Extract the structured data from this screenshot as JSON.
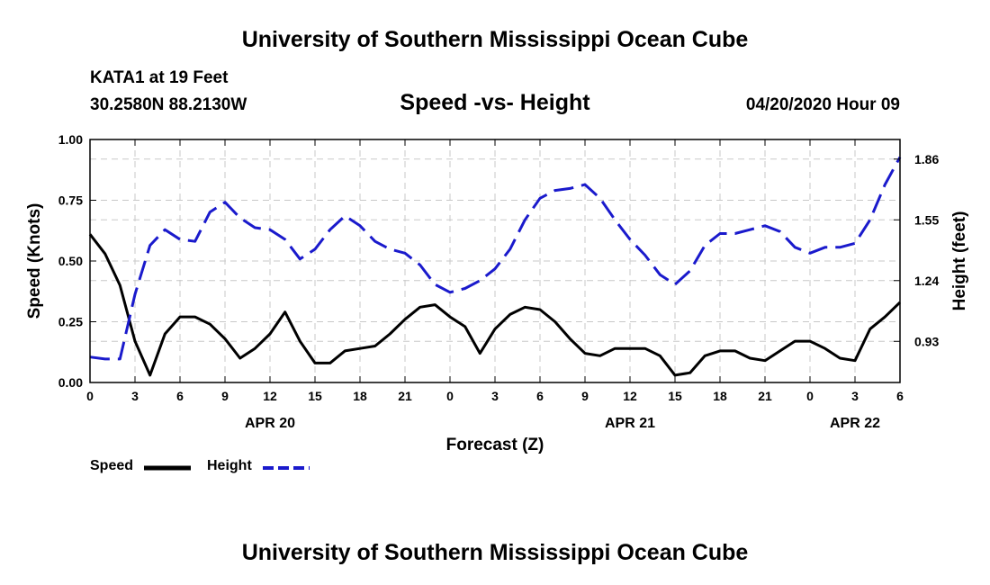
{
  "header": {
    "top_title": "University of Southern Mississippi Ocean Cube",
    "station": "KATA1 at 19 Feet",
    "coords": "30.2580N 88.2130W",
    "chart_title": "Speed -vs- Height",
    "datetime": "04/20/2020 Hour 09"
  },
  "footer": {
    "bottom_title": "University of Southern Mississippi Ocean Cube"
  },
  "legend": {
    "speed_label": "Speed",
    "height_label": "Height"
  },
  "colors": {
    "speed": "#000000",
    "height": "#1a1acc",
    "grid": "#c8c8c8"
  },
  "chart_data": {
    "type": "line",
    "title": "Speed -vs- Height",
    "xlabel": "Forecast (Z)",
    "ylabel": "Speed (Knots)",
    "y2label": "Height (feet)",
    "xlim": [
      0,
      54
    ],
    "ylim": [
      0,
      1.0
    ],
    "y2lim": [
      0.72,
      1.96
    ],
    "xticks": [
      0,
      3,
      6,
      9,
      12,
      15,
      18,
      21,
      24,
      27,
      30,
      33,
      36,
      39,
      42,
      45,
      48,
      51,
      54
    ],
    "xtick_labels": [
      "0",
      "3",
      "6",
      "9",
      "12",
      "15",
      "18",
      "21",
      "0",
      "3",
      "6",
      "9",
      "12",
      "15",
      "18",
      "21",
      "0",
      "3",
      "6"
    ],
    "date_labels": [
      {
        "x": 12,
        "label": "APR 20"
      },
      {
        "x": 36,
        "label": "APR 21"
      },
      {
        "x": 51,
        "label": "APR 22"
      }
    ],
    "yticks": [
      0,
      0.25,
      0.5,
      0.75,
      1.0
    ],
    "ytick_labels": [
      "0.00",
      "0.25",
      "0.50",
      "0.75",
      "1.00"
    ],
    "y2ticks": [
      0.93,
      1.24,
      1.55,
      1.86
    ],
    "y2tick_labels": [
      "0.93",
      "1.24",
      "1.55",
      "1.86"
    ],
    "grid": true,
    "x": [
      0,
      1,
      2,
      3,
      4,
      5,
      6,
      7,
      8,
      9,
      10,
      11,
      12,
      13,
      14,
      15,
      16,
      17,
      18,
      19,
      20,
      21,
      22,
      23,
      24,
      25,
      26,
      27,
      28,
      29,
      30,
      31,
      32,
      33,
      34,
      35,
      36,
      37,
      38,
      39,
      40,
      41,
      42,
      43,
      44,
      45,
      46,
      47,
      48,
      49,
      50,
      51,
      52,
      53,
      54
    ],
    "series": [
      {
        "name": "Speed",
        "axis": "left",
        "style": "solid",
        "values": [
          0.61,
          0.53,
          0.4,
          0.17,
          0.03,
          0.2,
          0.27,
          0.27,
          0.24,
          0.18,
          0.1,
          0.14,
          0.2,
          0.29,
          0.17,
          0.08,
          0.08,
          0.13,
          0.14,
          0.15,
          0.2,
          0.26,
          0.31,
          0.32,
          0.27,
          0.23,
          0.12,
          0.22,
          0.28,
          0.31,
          0.3,
          0.25,
          0.18,
          0.12,
          0.11,
          0.14,
          0.14,
          0.14,
          0.11,
          0.03,
          0.04,
          0.11,
          0.13,
          0.13,
          0.1,
          0.09,
          0.13,
          0.17,
          0.17,
          0.14,
          0.1,
          0.09,
          0.22,
          0.27,
          0.33
        ]
      },
      {
        "name": "Height",
        "axis": "right",
        "style": "dashed",
        "values": [
          0.85,
          0.84,
          0.84,
          1.17,
          1.42,
          1.5,
          1.45,
          1.44,
          1.59,
          1.64,
          1.56,
          1.51,
          1.5,
          1.45,
          1.35,
          1.4,
          1.5,
          1.57,
          1.52,
          1.44,
          1.4,
          1.38,
          1.32,
          1.22,
          1.18,
          1.2,
          1.24,
          1.3,
          1.4,
          1.55,
          1.66,
          1.7,
          1.71,
          1.73,
          1.66,
          1.55,
          1.45,
          1.37,
          1.27,
          1.22,
          1.29,
          1.42,
          1.48,
          1.48,
          1.5,
          1.52,
          1.49,
          1.41,
          1.38,
          1.41,
          1.41,
          1.43,
          1.55,
          1.73,
          1.87
        ]
      }
    ]
  }
}
